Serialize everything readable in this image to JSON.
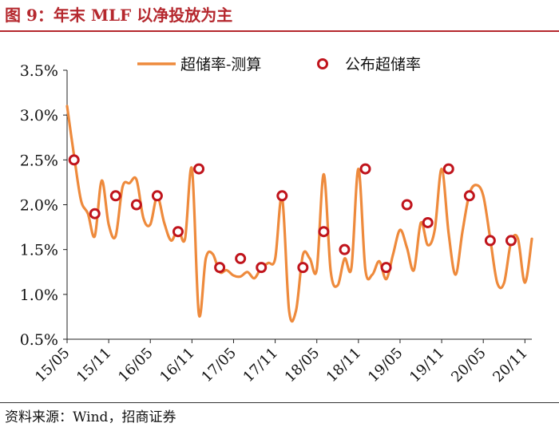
{
  "title": "图 9：年末 MLF 以净投放为主",
  "source": "资料来源：Wind，招商证券",
  "colors": {
    "title": "#b5282e",
    "line": "#ee8a3c",
    "marker": "#c0141c"
  },
  "chart_data": {
    "type": "line",
    "title": "",
    "xlabel": "",
    "ylabel": "",
    "ylim": [
      0.5,
      3.5
    ],
    "yticks": [
      "0.5%",
      "1.0%",
      "1.5%",
      "2.0%",
      "2.5%",
      "3.0%",
      "3.5%"
    ],
    "yticks_values": [
      0.5,
      1.0,
      1.5,
      2.0,
      2.5,
      3.0,
      3.5
    ],
    "xlim": [
      "2015-05",
      "2020-12"
    ],
    "xticks": [
      "15/05",
      "15/11",
      "16/05",
      "16/11",
      "17/05",
      "17/11",
      "18/05",
      "18/11",
      "19/05",
      "19/11",
      "20/05",
      "20/11"
    ],
    "legend_position": "top",
    "series": [
      {
        "name": "超储率-测算",
        "kind": "line",
        "color": "#ee8a3c",
        "x": [
          "2015-05",
          "2015-06",
          "2015-07",
          "2015-08",
          "2015-09",
          "2015-10",
          "2015-11",
          "2015-12",
          "2016-01",
          "2016-02",
          "2016-03",
          "2016-04",
          "2016-05",
          "2016-06",
          "2016-07",
          "2016-08",
          "2016-09",
          "2016-10",
          "2016-11",
          "2016-12",
          "2017-01",
          "2017-02",
          "2017-03",
          "2017-04",
          "2017-05",
          "2017-06",
          "2017-07",
          "2017-08",
          "2017-09",
          "2017-10",
          "2017-11",
          "2017-12",
          "2018-01",
          "2018-02",
          "2018-03",
          "2018-04",
          "2018-05",
          "2018-06",
          "2018-07",
          "2018-08",
          "2018-09",
          "2018-10",
          "2018-11",
          "2018-12",
          "2019-01",
          "2019-02",
          "2019-03",
          "2019-04",
          "2019-05",
          "2019-06",
          "2019-07",
          "2019-08",
          "2019-09",
          "2019-10",
          "2019-11",
          "2019-12",
          "2020-01",
          "2020-02",
          "2020-03",
          "2020-04",
          "2020-05",
          "2020-06",
          "2020-07",
          "2020-08",
          "2020-09",
          "2020-10",
          "2020-11",
          "2020-12"
        ],
        "values": [
          3.1,
          2.55,
          2.05,
          1.9,
          1.65,
          2.27,
          1.78,
          1.65,
          2.2,
          2.24,
          2.28,
          1.85,
          1.78,
          2.09,
          1.8,
          1.6,
          1.73,
          1.62,
          2.4,
          0.78,
          1.4,
          1.45,
          1.25,
          1.27,
          1.21,
          1.2,
          1.25,
          1.18,
          1.3,
          1.35,
          1.4,
          2.08,
          0.82,
          0.82,
          1.44,
          1.4,
          1.28,
          2.34,
          1.26,
          1.1,
          1.4,
          1.3,
          2.4,
          1.28,
          1.22,
          1.37,
          1.17,
          1.45,
          1.72,
          1.52,
          1.27,
          1.8,
          1.55,
          1.72,
          2.4,
          1.68,
          1.22,
          1.7,
          2.12,
          2.22,
          2.1,
          1.62,
          1.13,
          1.13,
          1.58,
          1.62,
          1.13,
          1.62
        ]
      },
      {
        "name": "公布超储率",
        "kind": "marker",
        "color": "#c0141c",
        "x": [
          "2015-06",
          "2015-09",
          "2015-12",
          "2016-03",
          "2016-06",
          "2016-09",
          "2016-12",
          "2017-03",
          "2017-06",
          "2017-09",
          "2017-12",
          "2018-03",
          "2018-06",
          "2018-09",
          "2018-12",
          "2019-03",
          "2019-06",
          "2019-09",
          "2019-12",
          "2020-03",
          "2020-06",
          "2020-09"
        ],
        "values": [
          2.5,
          1.9,
          2.1,
          2.0,
          2.1,
          1.7,
          2.4,
          1.3,
          1.4,
          1.3,
          2.1,
          1.3,
          1.7,
          1.5,
          2.4,
          1.3,
          2.0,
          1.8,
          2.4,
          2.1,
          1.6,
          1.6
        ]
      }
    ]
  }
}
